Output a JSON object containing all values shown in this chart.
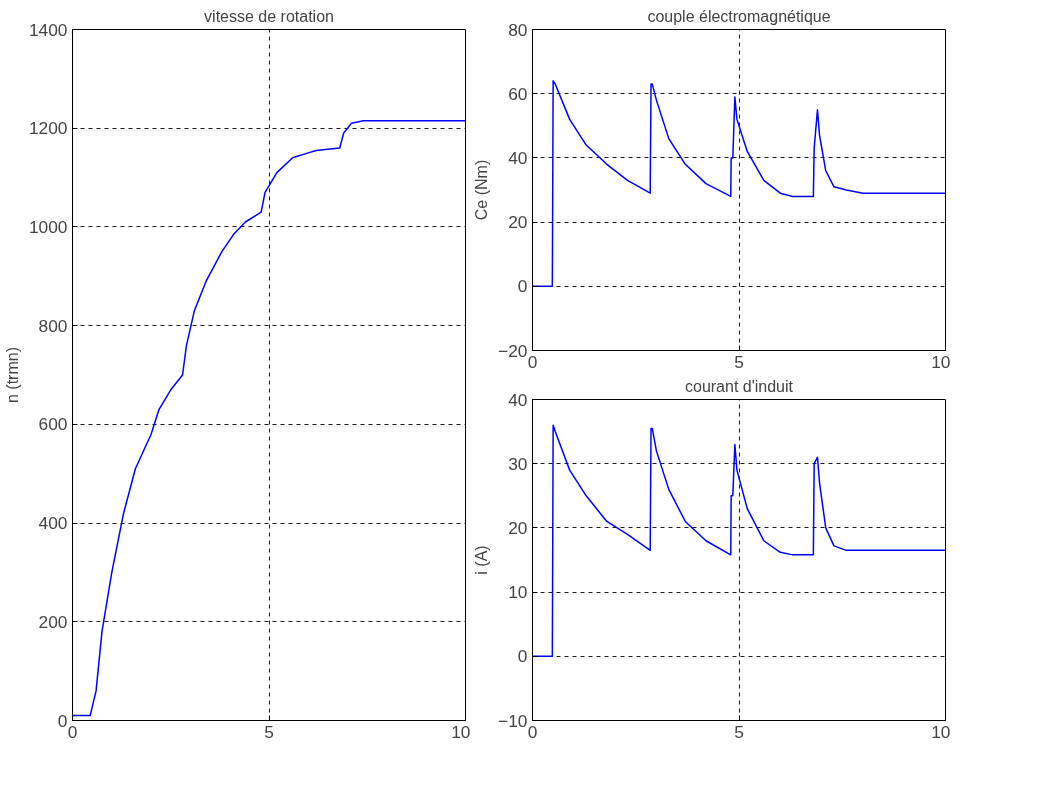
{
  "chart_data": [
    {
      "type": "line",
      "title": "vitesse de rotation",
      "ylabel": "n (trmn)",
      "xlim": [
        0,
        10
      ],
      "ylim": [
        0,
        1400
      ],
      "xticks": [
        0,
        5,
        10
      ],
      "yticks": [
        0,
        200,
        400,
        600,
        800,
        1000,
        1200,
        1400
      ],
      "grid": true,
      "line_style": "solid",
      "series": [
        {
          "color": "#0000ff",
          "x": [
            0,
            0.45,
            0.6,
            0.75,
            1.0,
            1.3,
            1.6,
            2.0,
            2.2,
            2.5,
            2.8,
            2.9,
            3.1,
            3.4,
            3.8,
            4.1,
            4.4,
            4.8,
            4.9,
            5.2,
            5.6,
            6.0,
            6.2,
            6.8,
            6.9,
            7.1,
            7.4,
            10
          ],
          "values": [
            10,
            10,
            60,
            180,
            300,
            420,
            510,
            580,
            630,
            670,
            700,
            760,
            830,
            890,
            950,
            985,
            1010,
            1030,
            1070,
            1110,
            1140,
            1150,
            1155,
            1160,
            1190,
            1210,
            1215,
            1215
          ]
        }
      ]
    },
    {
      "type": "line",
      "title": "couple électromagnétique",
      "ylabel": "Ce (Nm)",
      "xlim": [
        0,
        10
      ],
      "ylim": [
        -20,
        80
      ],
      "xticks": [
        0,
        5,
        10
      ],
      "yticks": [
        -20,
        0,
        20,
        40,
        60,
        80
      ],
      "grid": true,
      "line_style": "solid",
      "series": [
        {
          "color": "#0000ff",
          "x": [
            0,
            0.48,
            0.5,
            0.55,
            0.9,
            1.3,
            1.8,
            2.3,
            2.85,
            2.87,
            2.9,
            3.0,
            3.3,
            3.7,
            4.2,
            4.8,
            4.81,
            4.85,
            4.9,
            4.95,
            5.2,
            5.6,
            6.0,
            6.3,
            6.8,
            6.82,
            6.9,
            6.95,
            7.1,
            7.3,
            7.6,
            8.0,
            10
          ],
          "values": [
            0,
            0,
            64,
            63,
            52,
            44,
            38,
            33,
            29,
            63,
            63,
            58,
            46,
            38,
            32,
            28,
            40,
            40,
            59,
            52,
            42,
            33,
            29,
            28,
            28,
            43,
            55,
            47,
            36,
            31,
            30,
            29,
            29
          ]
        }
      ]
    },
    {
      "type": "line",
      "title": "courant d'induit",
      "ylabel": "i (A)",
      "xlim": [
        0,
        10
      ],
      "ylim": [
        -10,
        40
      ],
      "xticks": [
        0,
        5,
        10
      ],
      "yticks": [
        -10,
        0,
        10,
        20,
        30,
        40
      ],
      "grid": true,
      "line_style": "solid",
      "series": [
        {
          "color": "#0000ff",
          "x": [
            0,
            0.48,
            0.5,
            0.55,
            0.9,
            1.3,
            1.8,
            2.3,
            2.85,
            2.87,
            2.9,
            3.0,
            3.3,
            3.7,
            4.2,
            4.8,
            4.81,
            4.85,
            4.9,
            4.95,
            5.2,
            5.6,
            6.0,
            6.3,
            6.8,
            6.82,
            6.9,
            6.95,
            7.1,
            7.3,
            7.6,
            8.0,
            10
          ],
          "values": [
            0,
            0,
            36,
            35,
            29,
            25,
            21,
            19,
            16.5,
            35.5,
            35.5,
            32,
            26,
            21,
            18,
            15.8,
            25,
            25,
            33,
            29,
            23,
            18,
            16.2,
            15.8,
            15.8,
            30,
            31,
            27,
            20,
            17.2,
            16.5,
            16.5,
            16.5
          ]
        }
      ]
    }
  ]
}
